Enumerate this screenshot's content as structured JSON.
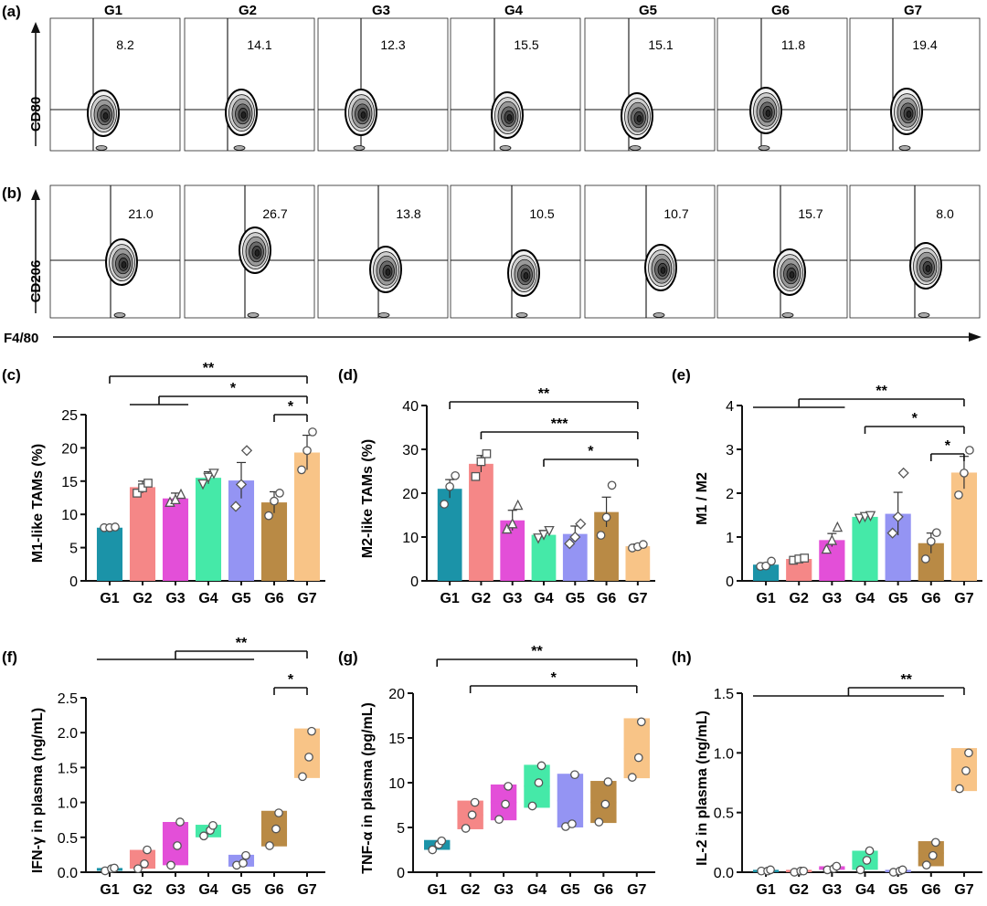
{
  "colors": [
    "#1b93a8",
    "#f58787",
    "#e34fd8",
    "#45e9a8",
    "#9494f3",
    "#b98a45",
    "#f8c487"
  ],
  "flow": {
    "groups": [
      "G1",
      "G2",
      "G3",
      "G4",
      "G5",
      "G6",
      "G7"
    ],
    "a": {
      "letter": "(a)",
      "ylabel": "CD80",
      "values": [
        "8.2",
        "14.1",
        "12.3",
        "15.5",
        "15.1",
        "11.8",
        "19.4"
      ]
    },
    "b": {
      "letter": "(b)",
      "ylabel": "CD206",
      "values": [
        "21.0",
        "26.7",
        "13.8",
        "10.5",
        "10.7",
        "15.7",
        "8.0"
      ]
    },
    "xlabel": "F4/80"
  },
  "chart_data": [
    {
      "letter": "(c)",
      "type": "bar",
      "ylabel": "M1-like TAMs (%)",
      "categories": [
        "G1",
        "G2",
        "G3",
        "G4",
        "G5",
        "G6",
        "G7"
      ],
      "ylim": [
        0,
        25
      ],
      "yticks": [
        0,
        5,
        10,
        15,
        20,
        25
      ],
      "values": [
        8.0,
        14.1,
        12.4,
        15.5,
        15.1,
        11.8,
        19.3
      ],
      "errors": [
        0.2,
        0.9,
        0.8,
        0.9,
        2.7,
        1.6,
        2.6
      ],
      "points": [
        [
          8.0,
          8.0,
          8.1
        ],
        [
          13.2,
          14.0,
          14.7
        ],
        [
          11.8,
          12.2,
          13.0
        ],
        [
          14.6,
          15.6,
          16.2
        ],
        [
          11.2,
          14.5,
          19.6
        ],
        [
          9.8,
          12.0,
          13.2
        ],
        [
          16.7,
          19.6,
          22.4
        ]
      ],
      "markers": [
        "circle",
        "square",
        "triangle",
        "triangle-down",
        "diamond",
        "circle",
        "circle"
      ],
      "significance": [
        {
          "label": "**",
          "from": [
            0
          ],
          "to": 6,
          "level": 0
        },
        {
          "label": "*",
          "from": [
            1,
            2
          ],
          "to": 6,
          "level": 1
        },
        {
          "label": "*",
          "from": [
            5
          ],
          "to": 6,
          "level": 2
        }
      ]
    },
    {
      "letter": "(d)",
      "type": "bar",
      "ylabel": "M2-like TAMs (%)",
      "categories": [
        "G1",
        "G2",
        "G3",
        "G4",
        "G5",
        "G6",
        "G7"
      ],
      "ylim": [
        0,
        40
      ],
      "yticks": [
        0,
        10,
        20,
        30,
        40
      ],
      "values": [
        21.0,
        26.7,
        13.8,
        10.5,
        10.7,
        15.7,
        7.9
      ],
      "errors": [
        2.1,
        1.9,
        2.3,
        1.0,
        1.8,
        3.4,
        0.5
      ],
      "points": [
        [
          17.5,
          21.5,
          24.0
        ],
        [
          23.8,
          27.2,
          29.0
        ],
        [
          11.8,
          13.0,
          17.2
        ],
        [
          9.8,
          10.6,
          11.5
        ],
        [
          8.5,
          10.0,
          13.0
        ],
        [
          10.4,
          14.5,
          21.8
        ],
        [
          7.5,
          7.8,
          8.3
        ]
      ],
      "markers": [
        "circle",
        "square",
        "triangle",
        "triangle-down",
        "diamond",
        "circle",
        "circle"
      ],
      "significance": [
        {
          "label": "**",
          "from": [
            0
          ],
          "to": 6,
          "level": 0
        },
        {
          "label": "***",
          "from": [
            1
          ],
          "to": 6,
          "level": 1
        },
        {
          "label": "*",
          "from": [
            3
          ],
          "to": 6,
          "level": 2
        }
      ]
    },
    {
      "letter": "(e)",
      "type": "bar",
      "ylabel": "M1 / M2",
      "categories": [
        "G1",
        "G2",
        "G3",
        "G4",
        "G5",
        "G6",
        "G7"
      ],
      "ylim": [
        0,
        4
      ],
      "yticks": [
        0,
        1,
        2,
        3,
        4
      ],
      "values": [
        0.37,
        0.5,
        0.93,
        1.46,
        1.53,
        0.86,
        2.47
      ],
      "errors": [
        0.04,
        0.03,
        0.15,
        0.04,
        0.49,
        0.23,
        0.37
      ],
      "points": [
        [
          0.33,
          0.34,
          0.45
        ],
        [
          0.47,
          0.5,
          0.52
        ],
        [
          0.72,
          0.92,
          1.22
        ],
        [
          1.43,
          1.47,
          1.49
        ],
        [
          1.09,
          1.46,
          2.46
        ],
        [
          0.5,
          0.9,
          1.1
        ],
        [
          1.96,
          2.46,
          2.98
        ]
      ],
      "markers": [
        "circle",
        "square",
        "triangle",
        "triangle-down",
        "diamond",
        "circle",
        "circle"
      ],
      "significance": [
        {
          "label": "**",
          "from": [
            0,
            1,
            2
          ],
          "to": 6,
          "level": 0
        },
        {
          "label": "*",
          "from": [
            3
          ],
          "to": 6,
          "level": 1
        },
        {
          "label": "*",
          "from": [
            5
          ],
          "to": 6,
          "level": 2
        }
      ]
    },
    {
      "letter": "(f)",
      "type": "floating-bar",
      "ylabel": "IFN-γ in plasma (ng/mL)",
      "categories": [
        "G1",
        "G2",
        "G3",
        "G4",
        "G5",
        "G6",
        "G7"
      ],
      "ylim": [
        0,
        2.5
      ],
      "yticks": [
        "0.0",
        "0.5",
        "1.0",
        "1.5",
        "2.0",
        "2.5"
      ],
      "ranges": [
        [
          0.02,
          0.06
        ],
        [
          0.05,
          0.32
        ],
        [
          0.1,
          0.72
        ],
        [
          0.5,
          0.68
        ],
        [
          0.08,
          0.25
        ],
        [
          0.37,
          0.88
        ],
        [
          1.35,
          2.06
        ]
      ],
      "means": [
        0.04,
        0.18,
        0.4,
        0.58,
        0.16,
        0.62,
        1.7
      ],
      "points": [
        [
          0.02,
          0.05,
          0.06
        ],
        [
          0.05,
          0.12,
          0.32
        ],
        [
          0.1,
          0.38,
          0.72
        ],
        [
          0.52,
          0.6,
          0.67
        ],
        [
          0.1,
          0.13,
          0.24
        ],
        [
          0.38,
          0.62,
          0.85
        ],
        [
          1.37,
          1.65,
          2.02
        ]
      ],
      "significance": [
        {
          "label": "**",
          "from": [
            0,
            1,
            2,
            3,
            4
          ],
          "to": 6,
          "level": 0
        },
        {
          "label": "*",
          "from": [
            5
          ],
          "to": 6,
          "level": 1
        }
      ]
    },
    {
      "letter": "(g)",
      "type": "floating-bar",
      "ylabel": "TNF-α in plasma (pg/mL)",
      "categories": [
        "G1",
        "G2",
        "G3",
        "G4",
        "G5",
        "G6",
        "G7"
      ],
      "ylim": [
        0,
        20
      ],
      "yticks": [
        0,
        5,
        10,
        15,
        20
      ],
      "ranges": [
        [
          2.5,
          3.6
        ],
        [
          4.8,
          8.0
        ],
        [
          5.8,
          9.8
        ],
        [
          7.2,
          12.0
        ],
        [
          5.0,
          11.0
        ],
        [
          5.5,
          10.2
        ],
        [
          10.5,
          17.2
        ]
      ],
      "means": [
        3.1,
        6.4,
        7.8,
        9.6,
        8.0,
        7.8,
        13.8
      ],
      "points": [
        [
          2.5,
          3.1,
          3.5
        ],
        [
          4.9,
          6.4,
          7.8
        ],
        [
          5.9,
          7.6,
          9.6
        ],
        [
          7.4,
          10.0,
          11.9
        ],
        [
          5.1,
          5.4,
          10.9
        ],
        [
          5.6,
          7.6,
          10.1
        ],
        [
          10.6,
          12.8,
          16.8
        ]
      ],
      "significance": [
        {
          "label": "**",
          "from": [
            0
          ],
          "to": 6,
          "level": 0
        },
        {
          "label": "*",
          "from": [
            1
          ],
          "to": 6,
          "level": 1
        }
      ]
    },
    {
      "letter": "(h)",
      "type": "floating-bar",
      "ylabel": "IL-2 in plasma (ng/mL)",
      "categories": [
        "G1",
        "G2",
        "G3",
        "G4",
        "G5",
        "G6",
        "G7"
      ],
      "ylim": [
        0,
        1.5
      ],
      "yticks": [
        "0.0",
        "0.5",
        "1.0",
        "1.5"
      ],
      "ranges": [
        [
          0.0,
          0.02
        ],
        [
          0.0,
          0.02
        ],
        [
          0.02,
          0.05
        ],
        [
          0.02,
          0.18
        ],
        [
          0.0,
          0.02
        ],
        [
          0.05,
          0.26
        ],
        [
          0.68,
          1.04
        ]
      ],
      "means": [
        0.01,
        0.01,
        0.03,
        0.1,
        0.01,
        0.16,
        0.86
      ],
      "points": [
        [
          0.01,
          0.01,
          0.02
        ],
        [
          0.0,
          0.01,
          0.01
        ],
        [
          0.02,
          0.03,
          0.05
        ],
        [
          0.02,
          0.1,
          0.18
        ],
        [
          0.0,
          0.01,
          0.02
        ],
        [
          0.06,
          0.14,
          0.25
        ],
        [
          0.7,
          0.85,
          1.0
        ]
      ],
      "significance": [
        {
          "label": "**",
          "from": [
            0,
            1,
            2,
            3,
            4,
            5
          ],
          "to": 6,
          "level": 0
        }
      ]
    }
  ]
}
